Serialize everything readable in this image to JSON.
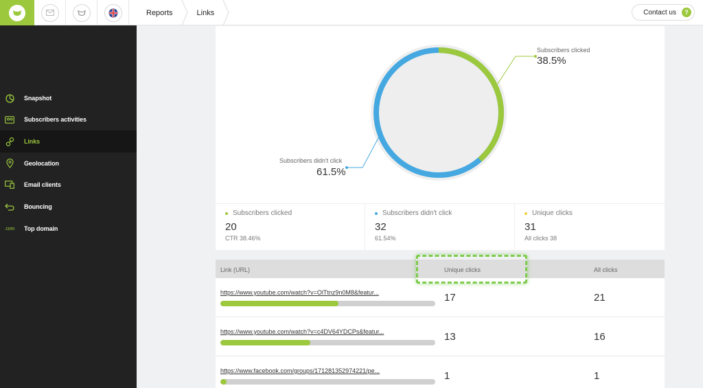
{
  "topbar": {
    "breadcrumbs": [
      "Reports",
      "Links"
    ],
    "contact_label": "Contact us",
    "help_label": "?"
  },
  "sidebar": {
    "items": [
      {
        "label": "Snapshot",
        "icon": "pie-chart-icon"
      },
      {
        "label": "Subscribers activities",
        "icon": "people-icon"
      },
      {
        "label": "Links",
        "icon": "link-icon",
        "active": true
      },
      {
        "label": "Geolocation",
        "icon": "location-pin-icon"
      },
      {
        "label": "Email clients",
        "icon": "devices-icon"
      },
      {
        "label": "Bouncing",
        "icon": "return-arrow-icon"
      },
      {
        "label": "Top domain",
        "icon": "dotcom-icon",
        "icon_text": ".com"
      }
    ]
  },
  "chart_data": {
    "type": "pie",
    "slices": [
      {
        "label": "Subscribers clicked",
        "value": 38.5,
        "display": "38.5%",
        "color": "#9cc83d"
      },
      {
        "label": "Subscribers didn't click",
        "value": 61.5,
        "display": "61.5%",
        "color": "#45a8e0"
      }
    ]
  },
  "stats": [
    {
      "label": "Subscribers clicked",
      "value": "20",
      "sub": "CTR 38.46%",
      "color": "#9cc83d"
    },
    {
      "label": "Subscribers didn't click",
      "value": "32",
      "sub": "61.54%",
      "color": "#45a8e0"
    },
    {
      "label": "Unique clicks",
      "value": "31",
      "sub": "All clicks 38",
      "color": "#f0d03a"
    }
  ],
  "table": {
    "headers": [
      "Link (URL)",
      "Unique clicks",
      "All clicks"
    ],
    "rows": [
      {
        "url": "https://www.youtube.com/watch?v=OlTtnz9n0M8&featur...",
        "unique": "17",
        "all": "21",
        "fill": 0.55
      },
      {
        "url": "https://www.youtube.com/watch?v=c4DV64YDCPs&featur...",
        "unique": "13",
        "all": "16",
        "fill": 0.42
      },
      {
        "url": "https://www.facebook.com/groups/171281352974221/pe...",
        "unique": "1",
        "all": "1",
        "fill": 0.03
      }
    ]
  },
  "colors": {
    "accent": "#9cc83d",
    "blue": "#45a8e0",
    "sidebar_bg": "#222222"
  }
}
